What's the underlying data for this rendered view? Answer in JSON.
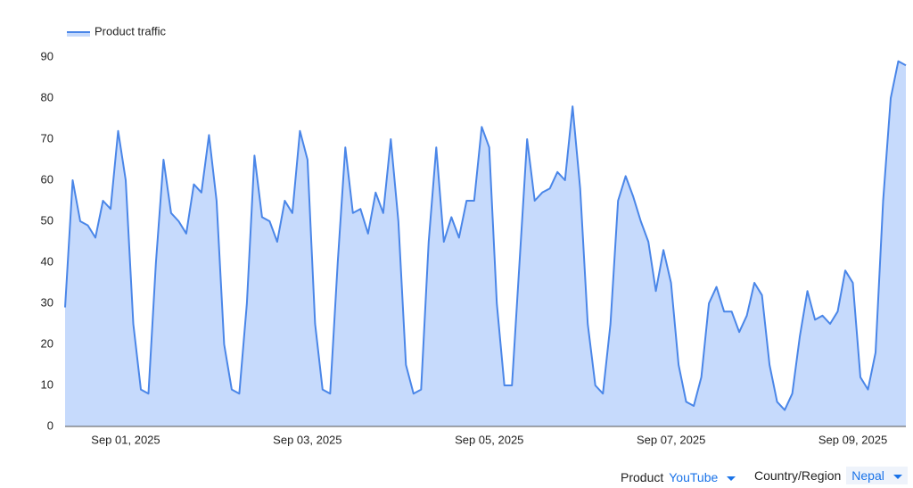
{
  "chart_data": {
    "type": "area",
    "series": [
      {
        "name": "Product traffic",
        "color": "#4a86e8",
        "fill": "#c6dafc",
        "values": [
          29,
          60,
          50,
          49,
          46,
          55,
          53,
          72,
          60,
          25,
          9,
          8,
          40,
          65,
          52,
          50,
          47,
          59,
          57,
          71,
          55,
          20,
          9,
          8,
          30,
          66,
          51,
          50,
          45,
          55,
          52,
          72,
          65,
          25,
          9,
          8,
          40,
          68,
          52,
          53,
          47,
          57,
          52,
          70,
          50,
          15,
          8,
          9,
          45,
          68,
          45,
          51,
          46,
          55,
          55,
          73,
          68,
          30,
          10,
          10,
          40,
          70,
          55,
          57,
          58,
          62,
          60,
          78,
          58,
          25,
          10,
          8,
          25,
          55,
          61,
          56,
          50,
          45,
          33,
          43,
          35,
          15,
          6,
          5,
          12,
          30,
          34,
          28,
          28,
          23,
          27,
          35,
          32,
          15,
          6,
          4,
          8,
          22,
          33,
          26,
          27,
          25,
          28,
          38,
          35,
          12,
          9,
          18,
          55,
          80,
          89,
          88
        ]
      }
    ],
    "categories": [
      null,
      null,
      null,
      null,
      null,
      null,
      null,
      null,
      "Sep 01, 2025",
      null,
      null,
      null,
      null,
      null,
      null,
      null,
      null,
      null,
      null,
      null,
      null,
      null,
      null,
      null,
      null,
      null,
      null,
      null,
      null,
      null,
      null,
      null,
      "Sep 03, 2025",
      null,
      null,
      null,
      null,
      null,
      null,
      null,
      null,
      null,
      null,
      null,
      null,
      null,
      null,
      null,
      null,
      null,
      null,
      null,
      null,
      null,
      null,
      null,
      "Sep 05, 2025",
      null,
      null,
      null,
      null,
      null,
      null,
      null,
      null,
      null,
      null,
      null,
      null,
      null,
      null,
      null,
      null,
      null,
      null,
      null,
      null,
      null,
      null,
      null,
      "Sep 07, 2025",
      null,
      null,
      null,
      null,
      null,
      null,
      null,
      null,
      null,
      null,
      null,
      null,
      null,
      null,
      null,
      null,
      null,
      null,
      null,
      null,
      null,
      null,
      null,
      "Sep 09, 2025",
      null,
      null,
      null,
      null,
      null,
      null,
      null
    ],
    "ylim": [
      0,
      90
    ],
    "yticks": [
      0,
      10,
      20,
      30,
      40,
      50,
      60,
      70,
      80,
      90
    ],
    "legend": "top-left"
  },
  "controls": [
    {
      "label": "Product",
      "value": "YouTube"
    },
    {
      "label": "Country/Region",
      "value": "Nepal"
    }
  ]
}
